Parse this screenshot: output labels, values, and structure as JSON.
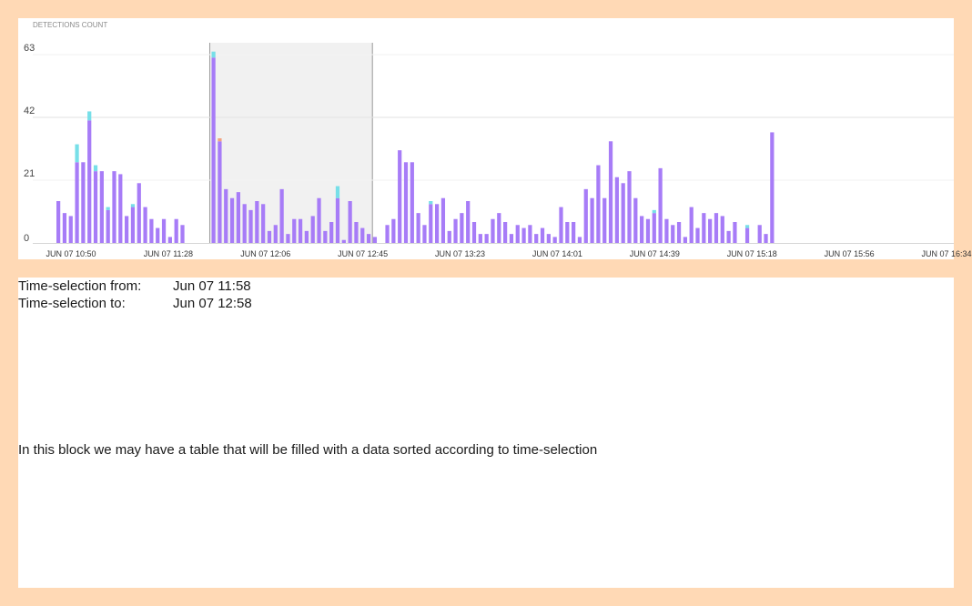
{
  "chart_data": {
    "type": "bar",
    "stacked": true,
    "title": "DETECTIONS COUNT",
    "ylim": [
      0,
      63
    ],
    "y_ticks": [
      0,
      21,
      42,
      63
    ],
    "x_tick_labels": [
      "JUN 07 10:50",
      "JUN 07 11:28",
      "JUN 07 12:06",
      "JUN 07 12:45",
      "JUN 07 13:23",
      "JUN 07 14:01",
      "JUN 07 14:39",
      "JUN 07 15:18",
      "JUN 07 15:56",
      "JUN 07 16:34"
    ],
    "grid": true,
    "bar_count": 144,
    "colors": {
      "violet": "#a77cf7",
      "cyan": "#77dfe8",
      "orange": "#f3a27f"
    },
    "series": [
      {
        "color": "violet",
        "values": [
          14,
          10,
          9,
          27,
          27,
          41,
          24,
          24,
          11,
          24,
          23,
          9,
          12,
          20,
          12,
          8,
          5,
          8,
          2,
          8,
          6,
          0,
          0,
          0,
          0,
          62,
          34,
          18,
          15,
          17,
          13,
          11,
          14,
          13,
          4,
          6,
          18,
          3,
          8,
          8,
          4,
          9,
          15,
          4,
          7,
          15,
          1,
          14,
          7,
          5,
          3,
          2,
          0,
          6,
          8,
          31,
          27,
          27,
          10,
          6,
          13,
          13,
          15,
          4,
          8,
          10,
          14,
          7,
          3,
          3,
          8,
          10,
          7,
          3,
          6,
          5,
          6,
          3,
          5,
          3,
          2,
          12,
          7,
          7,
          2,
          18,
          15,
          26,
          15,
          34,
          22,
          20,
          24,
          15,
          9,
          8,
          10,
          25,
          8,
          6,
          7,
          2,
          12,
          5,
          10,
          8,
          10,
          9,
          4,
          7,
          0,
          5,
          0,
          6,
          3,
          37,
          0,
          0,
          0,
          0,
          0,
          0,
          0,
          0,
          0,
          0,
          0,
          0,
          0,
          0,
          0,
          0,
          0,
          0,
          0,
          0,
          0,
          0,
          0,
          0,
          0,
          0,
          0
        ]
      },
      {
        "color": "cyan",
        "values": [
          0,
          0,
          0,
          6,
          0,
          3,
          2,
          0,
          1,
          0,
          0,
          0,
          1,
          0,
          0,
          0,
          0,
          0,
          0,
          0,
          0,
          0,
          0,
          0,
          0,
          2,
          0,
          0,
          0,
          0,
          0,
          0,
          0,
          0,
          0,
          0,
          0,
          0,
          0,
          0,
          0,
          0,
          0,
          0,
          0,
          4,
          0,
          0,
          0,
          0,
          0,
          0,
          0,
          0,
          0,
          0,
          0,
          0,
          0,
          0,
          1,
          0,
          0,
          0,
          0,
          0,
          0,
          0,
          0,
          0,
          0,
          0,
          0,
          0,
          0,
          0,
          0,
          0,
          0,
          0,
          0,
          0,
          0,
          0,
          0,
          0,
          0,
          0,
          0,
          0,
          0,
          0,
          0,
          0,
          0,
          0,
          1,
          0,
          0,
          0,
          0,
          0,
          0,
          0,
          0,
          0,
          0,
          0,
          0,
          0,
          0,
          1,
          0,
          0,
          0,
          0,
          0,
          0,
          0,
          0,
          0,
          0,
          0,
          0,
          0,
          0,
          0,
          0,
          0,
          0,
          0,
          0,
          0,
          0,
          0,
          0,
          0,
          0,
          0,
          0,
          0,
          0,
          0,
          0
        ]
      },
      {
        "color": "orange",
        "values": [
          0,
          0,
          0,
          0,
          0,
          0,
          0,
          0,
          0,
          0,
          0,
          0,
          0,
          0,
          0,
          0,
          0,
          0,
          0,
          0,
          0,
          0,
          0,
          0,
          0,
          0,
          1,
          0,
          0,
          0,
          0,
          0,
          0,
          0,
          0,
          0,
          0,
          0,
          0,
          0,
          0,
          0,
          0,
          0,
          0,
          0,
          0,
          0,
          0,
          0,
          0,
          0,
          0,
          0,
          0,
          0,
          0,
          0,
          0,
          0,
          0,
          0,
          0,
          0,
          0,
          0,
          0,
          0,
          0,
          0,
          0,
          0,
          0,
          0,
          0,
          0,
          0,
          0,
          0,
          0,
          0,
          0,
          0,
          0,
          0,
          0,
          0,
          0,
          0,
          0,
          0,
          0,
          0,
          0,
          0,
          0,
          0,
          0,
          0,
          0,
          0,
          0,
          0,
          0,
          0,
          0,
          0,
          0,
          0,
          0,
          0,
          0,
          0,
          0,
          0,
          0,
          0,
          0,
          0,
          0,
          0,
          0,
          0,
          0,
          0,
          0,
          0,
          0,
          0,
          0,
          0,
          0,
          0,
          0,
          0,
          0,
          0,
          0,
          0,
          0,
          0,
          0,
          0,
          0
        ]
      }
    ],
    "selection": {
      "from_index": 25,
      "to_index": 50
    }
  },
  "selection": {
    "from_label": "Time-selection from:",
    "from_value": "Jun 07 11:58",
    "to_label": "Time-selection to:",
    "to_value": "Jun 07 12:58"
  },
  "note": "In this block we may have a table that will be filled with a data sorted according to time-selection"
}
